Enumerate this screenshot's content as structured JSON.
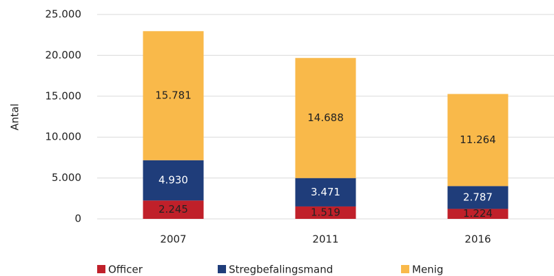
{
  "chart_data": {
    "type": "stacked_bar",
    "y_label": "Antal",
    "categories": [
      "2007",
      "2011",
      "2016"
    ],
    "series": [
      {
        "name": "Officer",
        "color": "#c0202a",
        "values": [
          2245,
          1519,
          1224
        ],
        "value_labels": [
          "2.245",
          "1.519",
          "1.224"
        ]
      },
      {
        "name": "Stregbefalingsmand",
        "color": "#1f3d7a",
        "values": [
          4930,
          3471,
          2787
        ],
        "value_labels": [
          "4.930",
          "3.471",
          "2.787"
        ]
      },
      {
        "name": "Menig",
        "color": "#f9b94a",
        "values": [
          15781,
          14688,
          11264
        ],
        "value_labels": [
          "15.781",
          "14.688",
          "11.264"
        ]
      }
    ],
    "ylim": [
      0,
      25000
    ],
    "yticks": [
      0,
      {
        "value": 5000,
        "label": "5.000"
      },
      {
        "value": 10000,
        "label": "10.000"
      },
      {
        "value": 15000,
        "label": "15.000"
      },
      {
        "value": 20000,
        "label": "20.000"
      },
      {
        "value": 25000,
        "label": "25.000"
      }
    ],
    "grid": true,
    "legend": "bottom"
  }
}
